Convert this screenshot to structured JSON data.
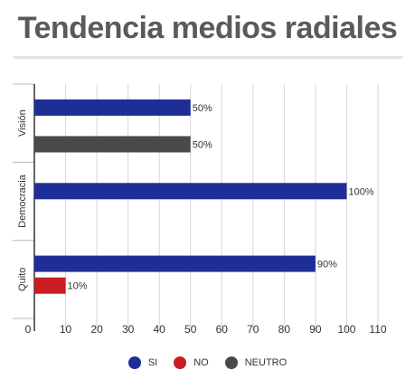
{
  "chart_data": {
    "type": "bar",
    "orientation": "horizontal",
    "title": "Tendencia medios radiales",
    "categories": [
      "Visión",
      "Democracia",
      "Quito"
    ],
    "series": [
      {
        "name": "SI",
        "color": "#1f2e96",
        "values": [
          50,
          100,
          90
        ]
      },
      {
        "name": "NO",
        "color": "#c91d22",
        "values": [
          null,
          null,
          10
        ]
      },
      {
        "name": "NEUTRO",
        "color": "#4a4a4a",
        "values": [
          50,
          null,
          null
        ]
      }
    ],
    "value_labels": [
      {
        "category": "Visión",
        "series": "SI",
        "label": "50%"
      },
      {
        "category": "Visión",
        "series": "NEUTRO",
        "label": "50%"
      },
      {
        "category": "Democracia",
        "series": "SI",
        "label": "100%"
      },
      {
        "category": "Quito",
        "series": "SI",
        "label": "90%"
      },
      {
        "category": "Quito",
        "series": "NO",
        "label": "10%"
      }
    ],
    "xlim": [
      0,
      110
    ],
    "xticks": [
      0,
      10,
      20,
      30,
      40,
      50,
      60,
      70,
      80,
      90,
      100,
      110
    ],
    "grid": "vertical",
    "legend_position": "bottom",
    "xlabel": "",
    "ylabel": ""
  }
}
